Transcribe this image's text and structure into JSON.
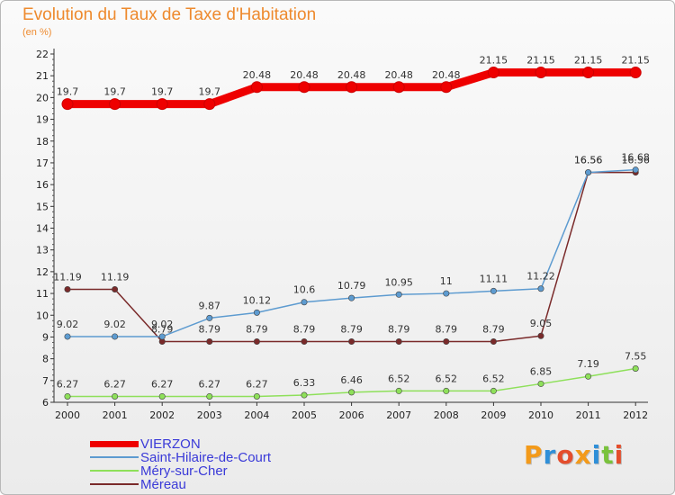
{
  "header": {
    "title": "Evolution du Taux de Taxe d'Habitation",
    "unit": "(en %)"
  },
  "chart_data": {
    "type": "line",
    "title": "Evolution du Taux de Taxe d'Habitation",
    "ylabel": "(en %)",
    "xlabel": "",
    "x": [
      "2000",
      "2001",
      "2002",
      "2003",
      "2004",
      "2005",
      "2006",
      "2007",
      "2008",
      "2009",
      "2010",
      "2011",
      "2012"
    ],
    "ylim": [
      6,
      22
    ],
    "yticks": [
      6,
      7,
      8,
      9,
      10,
      11,
      12,
      13,
      14,
      15,
      16,
      17,
      18,
      19,
      20,
      21,
      22
    ],
    "grid": false,
    "legend_position": "bottom-left",
    "series": [
      {
        "name": "VIERZON",
        "color": "#ee0000",
        "values": [
          19.7,
          19.7,
          19.7,
          19.7,
          20.48,
          20.48,
          20.48,
          20.48,
          20.48,
          21.15,
          21.15,
          21.15,
          21.15
        ],
        "labels": [
          "19.7",
          "19.7",
          "19.7",
          "19.7",
          "20.48",
          "20.48",
          "20.48",
          "20.48",
          "20.48",
          "21.15",
          "21.15",
          "21.15",
          "21.15"
        ]
      },
      {
        "name": "Saint-Hilaire-de-Court",
        "color": "#5d9bd0",
        "values": [
          9.02,
          9.02,
          9.02,
          9.87,
          10.12,
          10.6,
          10.79,
          10.95,
          11,
          11.11,
          11.22,
          16.56,
          16.68
        ],
        "labels": [
          "9.02",
          "9.02",
          "9.02",
          "9.87",
          "10.12",
          "10.6",
          "10.79",
          "10.95",
          "11",
          "11.11",
          "11.22",
          "16.56",
          "16.68"
        ]
      },
      {
        "name": "Méry-sur-Cher",
        "color": "#8ee05a",
        "values": [
          6.27,
          6.27,
          6.27,
          6.27,
          6.27,
          6.33,
          6.46,
          6.52,
          6.52,
          6.52,
          6.85,
          7.19,
          7.55
        ],
        "labels": [
          "6.27",
          "6.27",
          "6.27",
          "6.27",
          "6.27",
          "6.33",
          "6.46",
          "6.52",
          "6.52",
          "6.52",
          "6.85",
          "7.19",
          "7.55"
        ]
      },
      {
        "name": "Méreau",
        "color": "#7a2a2a",
        "values": [
          11.19,
          11.19,
          8.79,
          8.79,
          8.79,
          8.79,
          8.79,
          8.79,
          8.79,
          8.79,
          9.05,
          16.56,
          16.56
        ],
        "labels": [
          "11.19",
          "11.19",
          "8.79",
          "8.79",
          "8.79",
          "8.79",
          "8.79",
          "8.79",
          "8.79",
          "8.79",
          "9.05",
          "16.56",
          "16.56"
        ]
      }
    ]
  },
  "legend": {
    "items": [
      {
        "label": "VIERZON",
        "color": "#ee0000"
      },
      {
        "label": "Saint-Hilaire-de-Court",
        "color": "#5d9bd0"
      },
      {
        "label": "Méry-sur-Cher",
        "color": "#8ee05a"
      },
      {
        "label": "Méreau",
        "color": "#7a2a2a"
      }
    ],
    "label_color": "#3a3ad8"
  },
  "brand": {
    "text": "Proxiti",
    "letters": [
      "P",
      "r",
      "o",
      "x",
      "i",
      "t",
      "i"
    ],
    "colors": [
      "#f39a1a",
      "#2f8fd8",
      "#e44d2c",
      "#f39a1a",
      "#2f8fd8",
      "#79c23c",
      "#e44d2c"
    ]
  }
}
